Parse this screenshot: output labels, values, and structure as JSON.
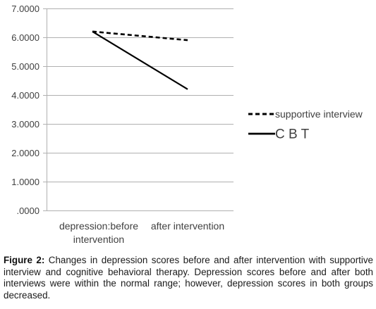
{
  "chart_data": {
    "type": "line",
    "categories": [
      "depression:before\nintervention",
      "after intervention"
    ],
    "series": [
      {
        "name": "supportive interview",
        "values": [
          6.2,
          5.9
        ],
        "style": "dashed",
        "color": "#000000"
      },
      {
        "name": "C B T",
        "values": [
          6.2,
          4.2
        ],
        "style": "solid",
        "color": "#000000"
      }
    ],
    "ylim": [
      0,
      7
    ],
    "y_ticks": [
      0,
      1,
      2,
      3,
      4,
      5,
      6,
      7
    ],
    "y_tick_labels": [
      ".0000",
      "1.0000",
      "2.0000",
      "3.0000",
      "4.0000",
      "5.0000",
      "6.0000",
      "7.0000"
    ],
    "grid": "horizontal",
    "gridline_color": "#b0b0b0",
    "legend_position": "right"
  },
  "caption": {
    "label": "Figure 2:",
    "text": "Changes in depression scores before and after intervention with supportive interview and cognitive behavioral therapy. Depression scores before and after both interviews were within the normal range; however, depression scores in both groups decreased."
  }
}
